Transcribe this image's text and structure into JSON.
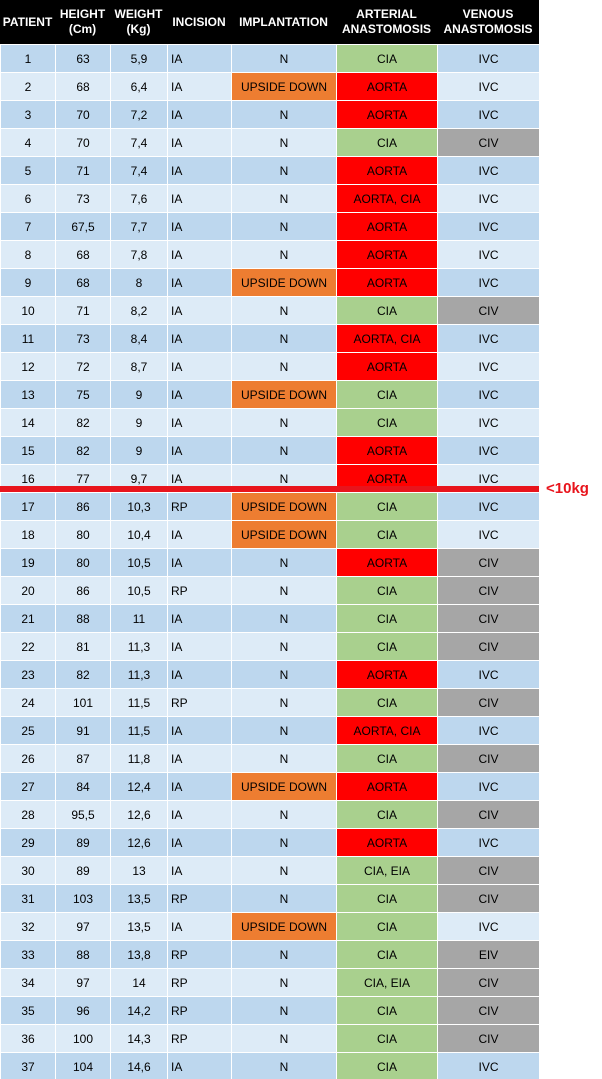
{
  "table": {
    "header": [
      "PATIENT",
      "HEIGHT\n(Cm)",
      "WEIGHT\n(Kg)",
      "INCISION",
      "IMPLANTATION",
      "ARTERIAL\nANASTOMOSIS",
      "VENOUS\nANASTOMOSIS"
    ],
    "rows": [
      [
        "1",
        "63",
        "5,9",
        "IA",
        "N",
        "CIA",
        "IVC"
      ],
      [
        "2",
        "68",
        "6,4",
        "IA",
        "UPSIDE DOWN",
        "AORTA",
        "IVC"
      ],
      [
        "3",
        "70",
        "7,2",
        "IA",
        "N",
        "AORTA",
        "IVC"
      ],
      [
        "4",
        "70",
        "7,4",
        "IA",
        "N",
        "CIA",
        "CIV"
      ],
      [
        "5",
        "71",
        "7,4",
        "IA",
        "N",
        "AORTA",
        "IVC"
      ],
      [
        "6",
        "73",
        "7,6",
        "IA",
        "N",
        "AORTA, CIA",
        "IVC"
      ],
      [
        "7",
        "67,5",
        "7,7",
        "IA",
        "N",
        "AORTA",
        "IVC"
      ],
      [
        "8",
        "68",
        "7,8",
        "IA",
        "N",
        "AORTA",
        "IVC"
      ],
      [
        "9",
        "68",
        "8",
        "IA",
        "UPSIDE DOWN",
        "AORTA",
        "IVC"
      ],
      [
        "10",
        "71",
        "8,2",
        "IA",
        "N",
        "CIA",
        "CIV"
      ],
      [
        "11",
        "73",
        "8,4",
        "IA",
        "N",
        "AORTA, CIA",
        "IVC"
      ],
      [
        "12",
        "72",
        "8,7",
        "IA",
        "N",
        "AORTA",
        "IVC"
      ],
      [
        "13",
        "75",
        "9",
        "IA",
        "UPSIDE DOWN",
        "CIA",
        "IVC"
      ],
      [
        "14",
        "82",
        "9",
        "IA",
        "N",
        "CIA",
        "IVC"
      ],
      [
        "15",
        "82",
        "9",
        "IA",
        "N",
        "AORTA",
        "IVC"
      ],
      [
        "16",
        "77",
        "9,7",
        "IA",
        "N",
        "AORTA",
        "IVC"
      ],
      [
        "17",
        "86",
        "10,3",
        "RP",
        "UPSIDE DOWN",
        "CIA",
        "IVC"
      ],
      [
        "18",
        "80",
        "10,4",
        "IA",
        "UPSIDE DOWN",
        "CIA",
        "IVC"
      ],
      [
        "19",
        "80",
        "10,5",
        "IA",
        "N",
        "AORTA",
        "CIV"
      ],
      [
        "20",
        "86",
        "10,5",
        "RP",
        "N",
        "CIA",
        "CIV"
      ],
      [
        "21",
        "88",
        "11",
        "IA",
        "N",
        "CIA",
        "CIV"
      ],
      [
        "22",
        "81",
        "11,3",
        "IA",
        "N",
        "CIA",
        "CIV"
      ],
      [
        "23",
        "82",
        "11,3",
        "IA",
        "N",
        "AORTA",
        "IVC"
      ],
      [
        "24",
        "101",
        "11,5",
        "RP",
        "N",
        "CIA",
        "CIV"
      ],
      [
        "25",
        "91",
        "11,5",
        "IA",
        "N",
        "AORTA, CIA",
        "IVC"
      ],
      [
        "26",
        "87",
        "11,8",
        "IA",
        "N",
        "CIA",
        "CIV"
      ],
      [
        "27",
        "84",
        "12,4",
        "IA",
        "UPSIDE DOWN",
        "AORTA",
        "IVC"
      ],
      [
        "28",
        "95,5",
        "12,6",
        "IA",
        "N",
        "CIA",
        "CIV"
      ],
      [
        "29",
        "89",
        "12,6",
        "IA",
        "N",
        "AORTA",
        "IVC"
      ],
      [
        "30",
        "89",
        "13",
        "IA",
        "N",
        "CIA, EIA",
        "CIV"
      ],
      [
        "31",
        "103",
        "13,5",
        "RP",
        "N",
        "CIA",
        "CIV"
      ],
      [
        "32",
        "97",
        "13,5",
        "IA",
        "UPSIDE DOWN",
        "CIA",
        "IVC"
      ],
      [
        "33",
        "88",
        "13,8",
        "RP",
        "N",
        "CIA",
        "EIV"
      ],
      [
        "34",
        "97",
        "14",
        "RP",
        "N",
        "CIA, EIA",
        "CIV"
      ],
      [
        "35",
        "96",
        "14,2",
        "RP",
        "N",
        "CIA",
        "CIV"
      ],
      [
        "36",
        "100",
        "14,3",
        "RP",
        "N",
        "CIA",
        "CIV"
      ],
      [
        "37",
        "104",
        "14,6",
        "IA",
        "N",
        "CIA",
        "IVC"
      ]
    ],
    "cell_fill": {
      "UPSIDE DOWN": "#ed7d31",
      "AORTA": "#ff0000",
      "AORTA, CIA": "#ff0000",
      "CIA": "#a9d08e",
      "CIA, EIA": "#a9d08e",
      "CIV": "#a6a6a6",
      "EIV": "#a6a6a6"
    },
    "row_fill": [
      "#bdd7ee",
      "#ddebf7"
    ]
  },
  "annotation": "<10kg"
}
